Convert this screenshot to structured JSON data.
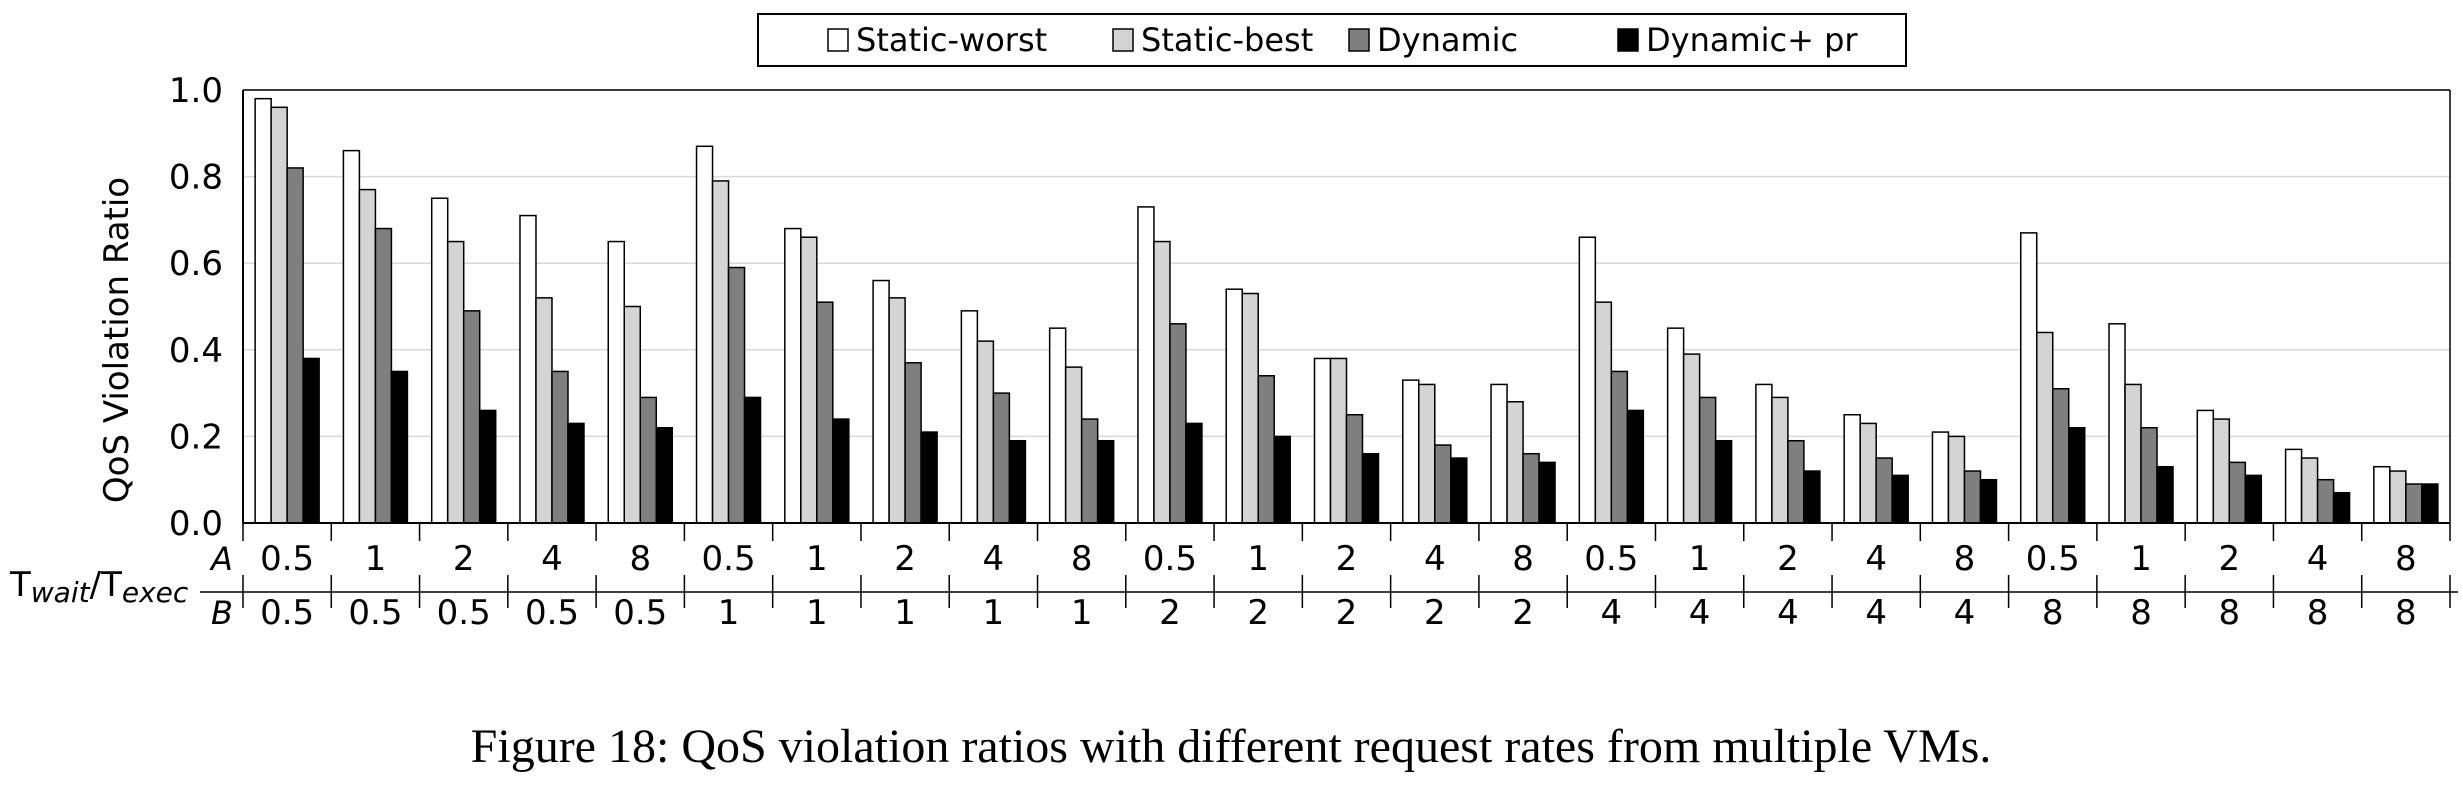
{
  "chart_data": {
    "type": "bar",
    "ylabel": "QoS Violation Ratio",
    "ylim": [
      0,
      1.0
    ],
    "yticks": [
      0.0,
      0.2,
      0.4,
      0.6,
      0.8,
      1.0
    ],
    "grid": true,
    "legend_position": "top-center",
    "series": [
      {
        "name": "Static-worst",
        "color": "#ffffff",
        "values": [
          0.98,
          0.86,
          0.75,
          0.71,
          0.65,
          0.87,
          0.68,
          0.56,
          0.49,
          0.45,
          0.73,
          0.54,
          0.38,
          0.33,
          0.32,
          0.66,
          0.45,
          0.32,
          0.25,
          0.21,
          0.67,
          0.46,
          0.26,
          0.17,
          0.13
        ]
      },
      {
        "name": "Static-best",
        "color": "#d4d4d4",
        "values": [
          0.96,
          0.77,
          0.65,
          0.52,
          0.5,
          0.79,
          0.66,
          0.52,
          0.42,
          0.36,
          0.65,
          0.53,
          0.38,
          0.32,
          0.28,
          0.51,
          0.39,
          0.29,
          0.23,
          0.2,
          0.44,
          0.32,
          0.24,
          0.15,
          0.12
        ]
      },
      {
        "name": "Dynamic",
        "color": "#7f7f7f",
        "values": [
          0.82,
          0.68,
          0.49,
          0.35,
          0.29,
          0.59,
          0.51,
          0.37,
          0.3,
          0.24,
          0.46,
          0.34,
          0.25,
          0.18,
          0.16,
          0.35,
          0.29,
          0.19,
          0.15,
          0.12,
          0.31,
          0.22,
          0.14,
          0.1,
          0.09
        ]
      },
      {
        "name": "Dynamic+ pr",
        "color": "#000000",
        "values": [
          0.38,
          0.35,
          0.26,
          0.23,
          0.22,
          0.29,
          0.24,
          0.21,
          0.19,
          0.19,
          0.23,
          0.2,
          0.16,
          0.15,
          0.14,
          0.26,
          0.19,
          0.12,
          0.11,
          0.1,
          0.22,
          0.13,
          0.11,
          0.07,
          0.09
        ]
      }
    ],
    "row_a_label": "A",
    "row_b_label": "B",
    "row_a": [
      "0.5",
      "1",
      "2",
      "4",
      "8",
      "0.5",
      "1",
      "2",
      "4",
      "8",
      "0.5",
      "1",
      "2",
      "4",
      "8",
      "0.5",
      "1",
      "2",
      "4",
      "8",
      "0.5",
      "1",
      "2",
      "4",
      "8"
    ],
    "row_b": [
      "0.5",
      "0.5",
      "0.5",
      "0.5",
      "0.5",
      "1",
      "1",
      "1",
      "1",
      "1",
      "2",
      "2",
      "2",
      "2",
      "2",
      "4",
      "4",
      "4",
      "4",
      "4",
      "8",
      "8",
      "8",
      "8",
      "8"
    ],
    "xlabel_main_1": "T",
    "xlabel_sub_1": "wait",
    "xlabel_sep": "/",
    "xlabel_main_2": "T",
    "xlabel_sub_2": "exec"
  },
  "caption": "Figure 18: QoS violation ratios with different request rates from multiple VMs."
}
